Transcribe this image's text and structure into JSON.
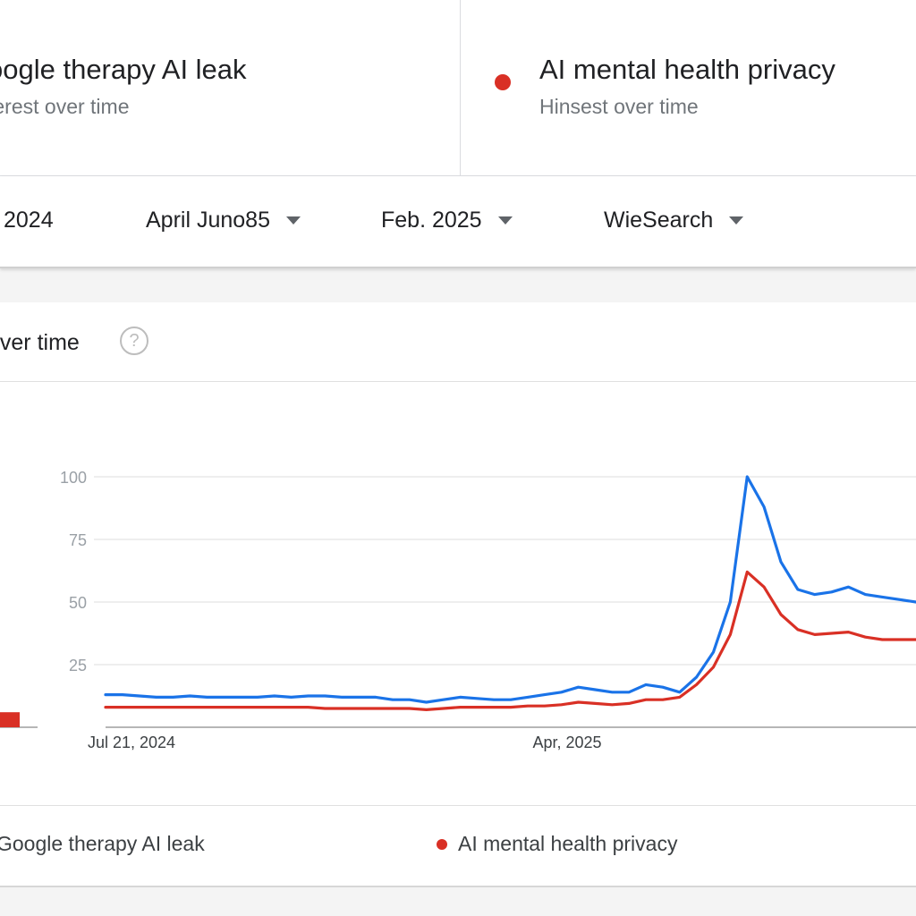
{
  "terms": [
    {
      "title": "oogle therapy AI leak",
      "subtitle": "terest over time",
      "color": "#1a73e8"
    },
    {
      "title": "AI mental health privacy",
      "subtitle": "Hinsest over time",
      "color": "#d93025"
    }
  ],
  "filters": [
    {
      "label": "2024",
      "has_caret": false
    },
    {
      "label": "April Juno85",
      "has_caret": true
    },
    {
      "label": "Feb. 2025",
      "has_caret": true
    },
    {
      "label": "WieSearch",
      "has_caret": true
    }
  ],
  "chart": {
    "heading": "over time",
    "help_icon": "help-circle-icon"
  },
  "legend": [
    {
      "label": "Google therapy AI leak",
      "color": "#1a73e8"
    },
    {
      "label": "AI mental health privacy",
      "color": "#d93025"
    }
  ],
  "chart_data": {
    "type": "line",
    "x_ticks": [
      "Jul 21, 2024",
      "Apr, 2025"
    ],
    "y_ticks": [
      25,
      50,
      75,
      100
    ],
    "ylim": [
      0,
      100
    ],
    "grid": true,
    "series": [
      {
        "name": "Google therapy AI leak",
        "color": "#1a73e8",
        "values": [
          13,
          13,
          12.5,
          12,
          12,
          12.5,
          12,
          12,
          12,
          12,
          12.5,
          12,
          12.5,
          12.5,
          12,
          12,
          12,
          11,
          11,
          10,
          11,
          12,
          11.5,
          11,
          11,
          12,
          13,
          14,
          16,
          15,
          14,
          14,
          17,
          16,
          14,
          20,
          30,
          50,
          100,
          88,
          66,
          55,
          53,
          54,
          56,
          53,
          52,
          51,
          50
        ]
      },
      {
        "name": "AI mental health privacy",
        "color": "#d93025",
        "values": [
          8,
          8,
          8,
          8,
          8,
          8,
          8,
          8,
          8,
          8,
          8,
          8,
          8,
          7.5,
          7.5,
          7.5,
          7.5,
          7.5,
          7.5,
          7,
          7.5,
          8,
          8,
          8,
          8,
          8.5,
          8.5,
          9,
          10,
          9.5,
          9,
          9.5,
          11,
          11,
          12,
          17,
          24,
          37,
          62,
          56,
          45,
          39,
          37,
          37.5,
          38,
          36,
          35,
          35,
          35
        ]
      }
    ],
    "extra_bar": {
      "value": 6,
      "color": "#d93025"
    }
  }
}
